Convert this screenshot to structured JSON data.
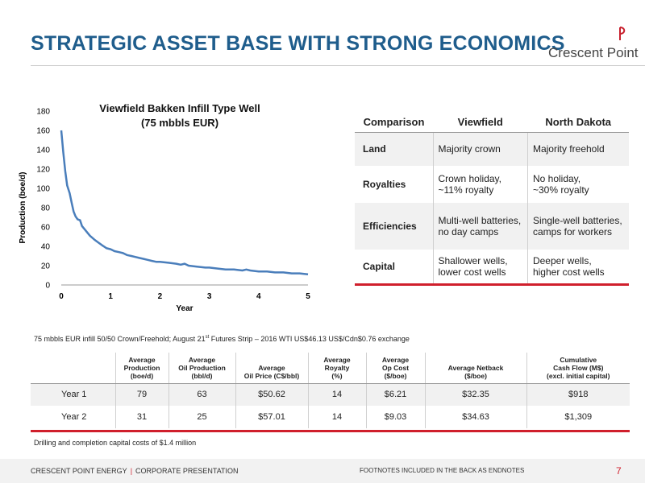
{
  "header": {
    "title": "STRATEGIC ASSET BASE WITH STRONG ECONOMICS",
    "logo_text": "Crescent Point",
    "logo_color": "#c8202e"
  },
  "chart_data": {
    "type": "line",
    "title": "Viewfield Bakken Infill Type Well (75 mbbls EUR)",
    "title_line1": "Viewfield Bakken Infill Type Well",
    "title_line2": "(75 mbbls EUR)",
    "xlabel": "Year",
    "ylabel": "Production (boe/d)",
    "xlim": [
      0,
      5
    ],
    "ylim": [
      0,
      180
    ],
    "xticks": [
      0,
      1,
      2,
      3,
      4,
      5
    ],
    "yticks": [
      0,
      20,
      40,
      60,
      80,
      100,
      120,
      140,
      160,
      180
    ],
    "grid": false,
    "series_color": "#4a7ebb",
    "x": [
      0,
      0.04,
      0.08,
      0.12,
      0.17,
      0.21,
      0.25,
      0.29,
      0.33,
      0.38,
      0.42,
      0.5,
      0.58,
      0.67,
      0.75,
      0.83,
      0.92,
      1.0,
      1.08,
      1.17,
      1.25,
      1.33,
      1.42,
      1.5,
      1.58,
      1.67,
      1.75,
      1.83,
      1.92,
      2.0,
      2.17,
      2.33,
      2.42,
      2.5,
      2.58,
      2.75,
      2.92,
      3.0,
      3.17,
      3.33,
      3.5,
      3.67,
      3.75,
      3.83,
      4.0,
      4.17,
      4.33,
      4.5,
      4.67,
      4.83,
      5.0
    ],
    "y": [
      160,
      138,
      118,
      103,
      95,
      85,
      76,
      71,
      68,
      67,
      61,
      56,
      51,
      47,
      44,
      41,
      38,
      37,
      35,
      34,
      33,
      31,
      30,
      29,
      28,
      27,
      26,
      25,
      24,
      24,
      23,
      22,
      21,
      22,
      20,
      19,
      18,
      18,
      17,
      16,
      16,
      15,
      16,
      15,
      14,
      14,
      13,
      13,
      12,
      12,
      11
    ]
  },
  "comparison": {
    "headers": [
      "Comparison",
      "Viewfield",
      "North Dakota"
    ],
    "rows": [
      {
        "label": "Land",
        "viewfield": [
          "Majority crown"
        ],
        "north_dakota": [
          "Majority freehold"
        ]
      },
      {
        "label": "Royalties",
        "viewfield": [
          "Crown holiday,",
          "~11% royalty"
        ],
        "north_dakota": [
          "No holiday,",
          "~30% royalty"
        ]
      },
      {
        "label": "Efficiencies",
        "viewfield": [
          "Multi-well batteries,",
          "no day camps"
        ],
        "north_dakota": [
          "Single-well batteries,",
          "camps for workers"
        ]
      },
      {
        "label": "Capital",
        "viewfield": [
          "Shallower wells,",
          "lower cost  wells"
        ],
        "north_dakota": [
          "Deeper wells,",
          "higher cost wells"
        ]
      }
    ]
  },
  "footnote": {
    "before": "75 mbbls EUR infill 50/50 Crown/Freehold; August 21",
    "sup": "st",
    "after": " Futures Strip – 2016 WTI US$46.13 US$/Cdn$0.76 exchange"
  },
  "economics": {
    "headers": [
      [
        "Average",
        "Production",
        "(boe/d)"
      ],
      [
        "Average",
        "Oil Production",
        "(bbl/d)"
      ],
      [
        "Average",
        "Oil Price (C$/bbl)"
      ],
      [
        "Average",
        "Royalty",
        "(%)"
      ],
      [
        "Average",
        "Op Cost",
        "($/boe)"
      ],
      [
        "Average Netback",
        "($/boe)"
      ],
      [
        "Cumulative",
        "Cash Flow (M$)",
        "(excl. initial capital)"
      ]
    ],
    "rows": [
      {
        "label": "Year 1",
        "values": [
          "79",
          "63",
          "$50.62",
          "14",
          "$6.21",
          "$32.35",
          "$918"
        ]
      },
      {
        "label": "Year 2",
        "values": [
          "31",
          "25",
          "$57.01",
          "14",
          "$9.03",
          "$34.63",
          "$1,309"
        ]
      }
    ]
  },
  "capital_note": "Drilling and completion capital costs of $1.4 million",
  "footer": {
    "company": "CRESCENT POINT ENERGY",
    "separator": "|",
    "presentation": "CORPORATE PRESENTATION",
    "endnotes": "FOOTNOTES INCLUDED IN THE BACK AS ENDNOTES",
    "page": "7"
  }
}
